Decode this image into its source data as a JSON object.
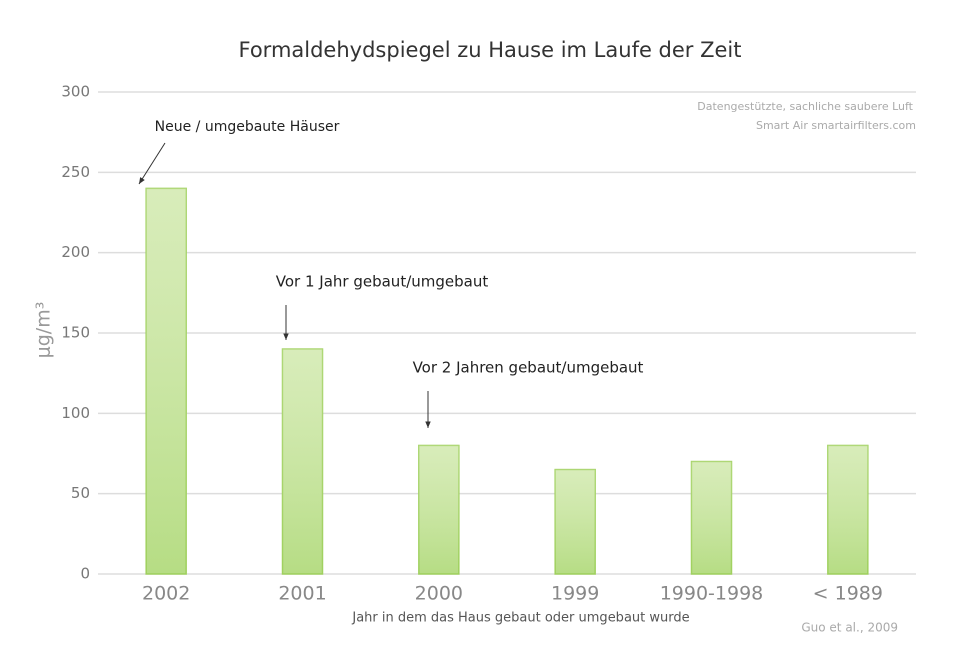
{
  "chart_data": {
    "type": "bar",
    "title": "Formaldehydspiegel zu Hause im Laufe der Zeit",
    "xlabel": "Jahr in dem das Haus gebaut oder umgebaut wurde",
    "ylabel": "μg/m³",
    "categories": [
      "2002",
      "2001",
      "2000",
      "1999",
      "1990-1998",
      "< 1989"
    ],
    "values": [
      240,
      140,
      80,
      65,
      70,
      80
    ],
    "color": "#cbe6a3",
    "ylim": [
      0,
      300
    ],
    "yticks": [
      0,
      50,
      100,
      150,
      200,
      250,
      300
    ],
    "grid": true,
    "annotations": [
      "Neue / umgebaute Häuser",
      "Vor 1 Jahr gebaut/umgebaut",
      "Vor 2 Jahren gebaut/umgebaut"
    ],
    "notes": [
      "Datengestützte, sachliche saubere Luft",
      "Smart Air smartairfilters.com"
    ],
    "source": "Guo et al., 2009"
  }
}
